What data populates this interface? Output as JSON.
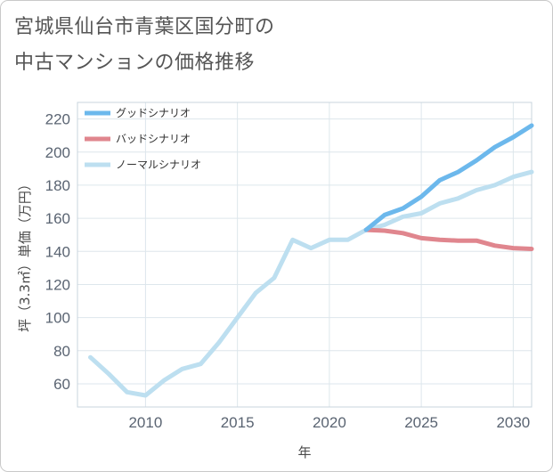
{
  "title_lines": [
    "宮城県仙台市青葉区国分町の",
    "中古マンションの価格推移"
  ],
  "chart_data": {
    "type": "line",
    "xlabel": "年",
    "ylabel": "坪（3.3㎡）単価（万円）",
    "xlim": [
      2006.3,
      2031
    ],
    "ylim": [
      46,
      230
    ],
    "x_ticks": [
      2010,
      2015,
      2020,
      2025,
      2030
    ],
    "y_ticks": [
      60,
      80,
      100,
      120,
      140,
      160,
      180,
      200,
      220
    ],
    "grid": true,
    "legend_position": "top-left",
    "series": [
      {
        "name": "グッドシナリオ",
        "color": "#6cb8ec",
        "x": [
          2022,
          2023,
          2024,
          2025,
          2026,
          2027,
          2028,
          2029,
          2030,
          2031
        ],
        "y": [
          153,
          162,
          166,
          173,
          183,
          188,
          195,
          203,
          209,
          216
        ]
      },
      {
        "name": "バッドシナリオ",
        "color": "#e0868e",
        "x": [
          2022,
          2023,
          2024,
          2025,
          2026,
          2027,
          2028,
          2029,
          2030,
          2031
        ],
        "y": [
          153,
          152.5,
          151,
          148,
          147,
          146.5,
          146.5,
          143.5,
          142,
          141.5
        ]
      },
      {
        "name": "ノーマルシナリオ",
        "color": "#bddff0",
        "x": [
          2007,
          2008,
          2009,
          2010,
          2011,
          2012,
          2013,
          2014,
          2015,
          2016,
          2017,
          2018,
          2019,
          2020,
          2021,
          2022,
          2023,
          2024,
          2025,
          2026,
          2027,
          2028,
          2029,
          2030,
          2031
        ],
        "y": [
          76,
          66,
          55,
          53,
          62,
          69,
          72,
          85,
          100,
          115,
          124,
          147,
          142,
          147,
          147,
          153,
          156,
          161,
          163,
          169,
          172,
          177,
          180,
          185,
          188
        ]
      }
    ]
  }
}
